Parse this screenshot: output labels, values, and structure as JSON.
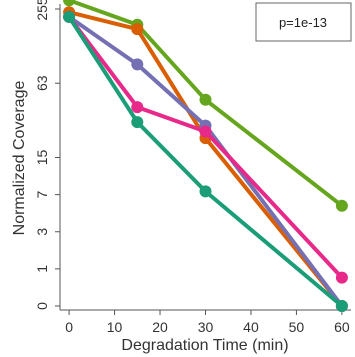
{
  "chart_data": {
    "type": "line",
    "title": "",
    "xlabel": "Degradation Time (min)",
    "ylabel": "Normalized Coverage",
    "x_ticks": [
      0,
      10,
      20,
      30,
      40,
      50,
      60
    ],
    "x_tick_labels": [
      "0",
      "10",
      "20",
      "30",
      "40",
      "50",
      "60"
    ],
    "xlim": [
      -2,
      62
    ],
    "y_scale": "log2(1+y)",
    "y_ticks": [
      0,
      1,
      3,
      7,
      15,
      63,
      255
    ],
    "y_tick_labels": [
      "0",
      "1",
      "3",
      "7",
      "15",
      "63",
      "255"
    ],
    "ylim": [
      0,
      280
    ],
    "grid": false,
    "annotation": "p=1e-13",
    "series": [
      {
        "color": "#66a61e",
        "x": [
          0,
          15,
          30,
          60
        ],
        "y": [
          300,
          190,
          46,
          5.5
        ]
      },
      {
        "color": "#d95f02",
        "x": [
          0,
          15,
          30,
          60
        ],
        "y": [
          240,
          175,
          22,
          0
        ]
      },
      {
        "color": "#7570b3",
        "x": [
          0,
          15,
          30,
          60
        ],
        "y": [
          220,
          90,
          28,
          0
        ]
      },
      {
        "color": "#e7298a",
        "x": [
          0,
          15,
          30,
          60
        ],
        "y": [
          220,
          40,
          25,
          0.7
        ]
      },
      {
        "color": "#1b9e77",
        "x": [
          0,
          15,
          30,
          60
        ],
        "y": [
          220,
          30,
          7.5,
          0
        ]
      }
    ]
  }
}
